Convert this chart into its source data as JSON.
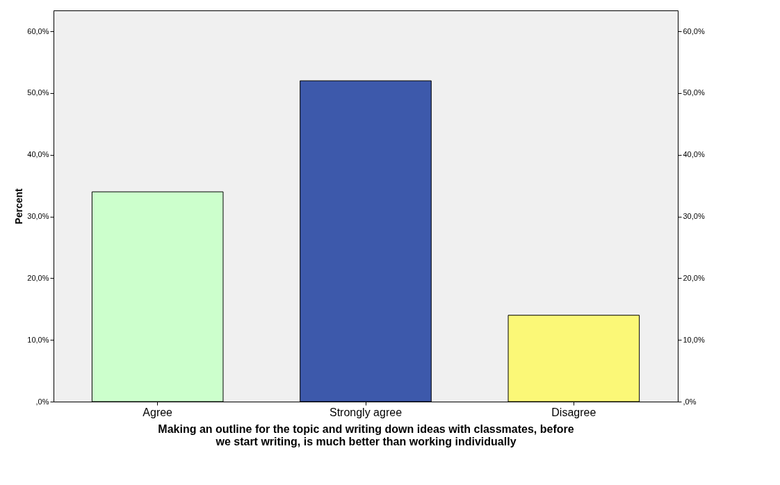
{
  "chart_data": {
    "type": "bar",
    "categories": [
      "Agree",
      "Strongly agree",
      "Disagree"
    ],
    "values": [
      34.0,
      52.0,
      14.0
    ],
    "colors": [
      "#ccffcc",
      "#3d59ab",
      "#fbf877"
    ],
    "xlabel": "Making an outline for the topic and writing down ideas with classmates, before we start writing, is much better than working individually",
    "ylabel": "Percent",
    "ylim": [
      0,
      63.4
    ],
    "yticks": [
      {
        "value": 0,
        "label": ",0%"
      },
      {
        "value": 10,
        "label": "10,0%"
      },
      {
        "value": 20,
        "label": "20,0%"
      },
      {
        "value": 30,
        "label": "30,0%"
      },
      {
        "value": 40,
        "label": "40,0%"
      },
      {
        "value": 50,
        "label": "50,0%"
      },
      {
        "value": 60,
        "label": "60,0%"
      }
    ],
    "y2lim": [
      0,
      63.4
    ],
    "y2ticks": [
      {
        "value": 0,
        "label": ",0%"
      },
      {
        "value": 10,
        "label": "10,0%"
      },
      {
        "value": 20,
        "label": "20,0%"
      },
      {
        "value": 30,
        "label": "30,0%"
      },
      {
        "value": 40,
        "label": "40,0%"
      },
      {
        "value": 50,
        "label": "50,0%"
      },
      {
        "value": 60,
        "label": "60,0%"
      }
    ],
    "grid": false
  }
}
